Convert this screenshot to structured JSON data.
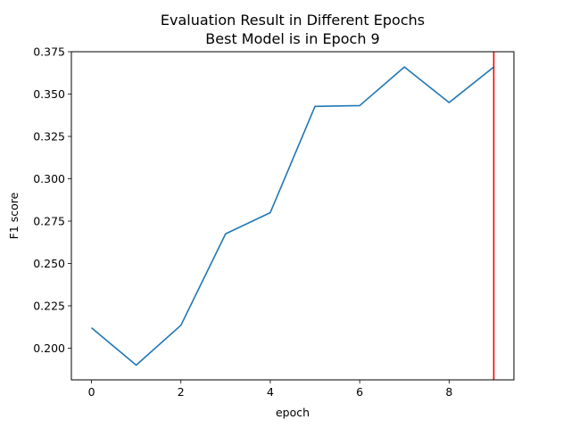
{
  "chart_data": {
    "type": "line",
    "title": "Evaluation Result in Different Epochs",
    "subtitle": "Best Model is in Epoch 9",
    "xlabel": "epoch",
    "ylabel": "F1 score",
    "xlim": [
      -0.45,
      9.45
    ],
    "ylim": [
      0.1813,
      0.375
    ],
    "grid": false,
    "legend": false,
    "x_ticks": [
      0,
      2,
      4,
      6,
      8
    ],
    "x_tick_labels": [
      "0",
      "2",
      "4",
      "6",
      "8"
    ],
    "y_ticks": [
      0.2,
      0.225,
      0.25,
      0.275,
      0.3,
      0.325,
      0.35,
      0.375
    ],
    "y_tick_labels": [
      "0.200",
      "0.225",
      "0.250",
      "0.275",
      "0.300",
      "0.325",
      "0.350",
      "0.375"
    ],
    "series": [
      {
        "x": [
          0,
          1,
          2,
          3,
          4,
          5,
          6,
          7,
          8,
          9
        ],
        "y": [
          0.212,
          0.19,
          0.2135,
          0.2675,
          0.28,
          0.3427,
          0.3432,
          0.366,
          0.345,
          0.366
        ],
        "color": "#1f77b4"
      }
    ],
    "vline": {
      "x": 9,
      "color": "#ff0000"
    }
  }
}
